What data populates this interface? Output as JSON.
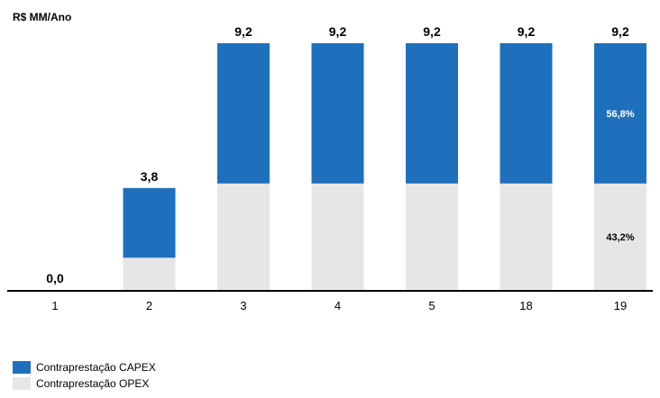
{
  "chart_data": {
    "type": "bar",
    "stacked": true,
    "ylabel": "R$ MM/Ano",
    "categories": [
      "1",
      "2",
      "3",
      "4",
      "5",
      "18",
      "19"
    ],
    "totals": [
      0.0,
      3.8,
      9.2,
      9.2,
      9.2,
      9.2,
      9.2
    ],
    "total_labels": [
      "0,0",
      "3,8",
      "9,2",
      "9,2",
      "9,2",
      "9,2",
      "9,2"
    ],
    "series": [
      {
        "name": "Contraprestação OPEX",
        "color": "#e6e6e6",
        "values": [
          0.0,
          1.2,
          3.97,
          3.97,
          3.97,
          3.97,
          3.97
        ]
      },
      {
        "name": "Contraprestação CAPEX",
        "color": "#1f70bc",
        "values": [
          0.0,
          2.6,
          5.23,
          5.23,
          5.23,
          5.23,
          5.23
        ]
      }
    ],
    "share_labels": {
      "category": "19",
      "capex": "56,8%",
      "opex": "43,2%"
    },
    "ylim": [
      0,
      9.2
    ],
    "grid": false,
    "legend_position": "bottom-left"
  }
}
